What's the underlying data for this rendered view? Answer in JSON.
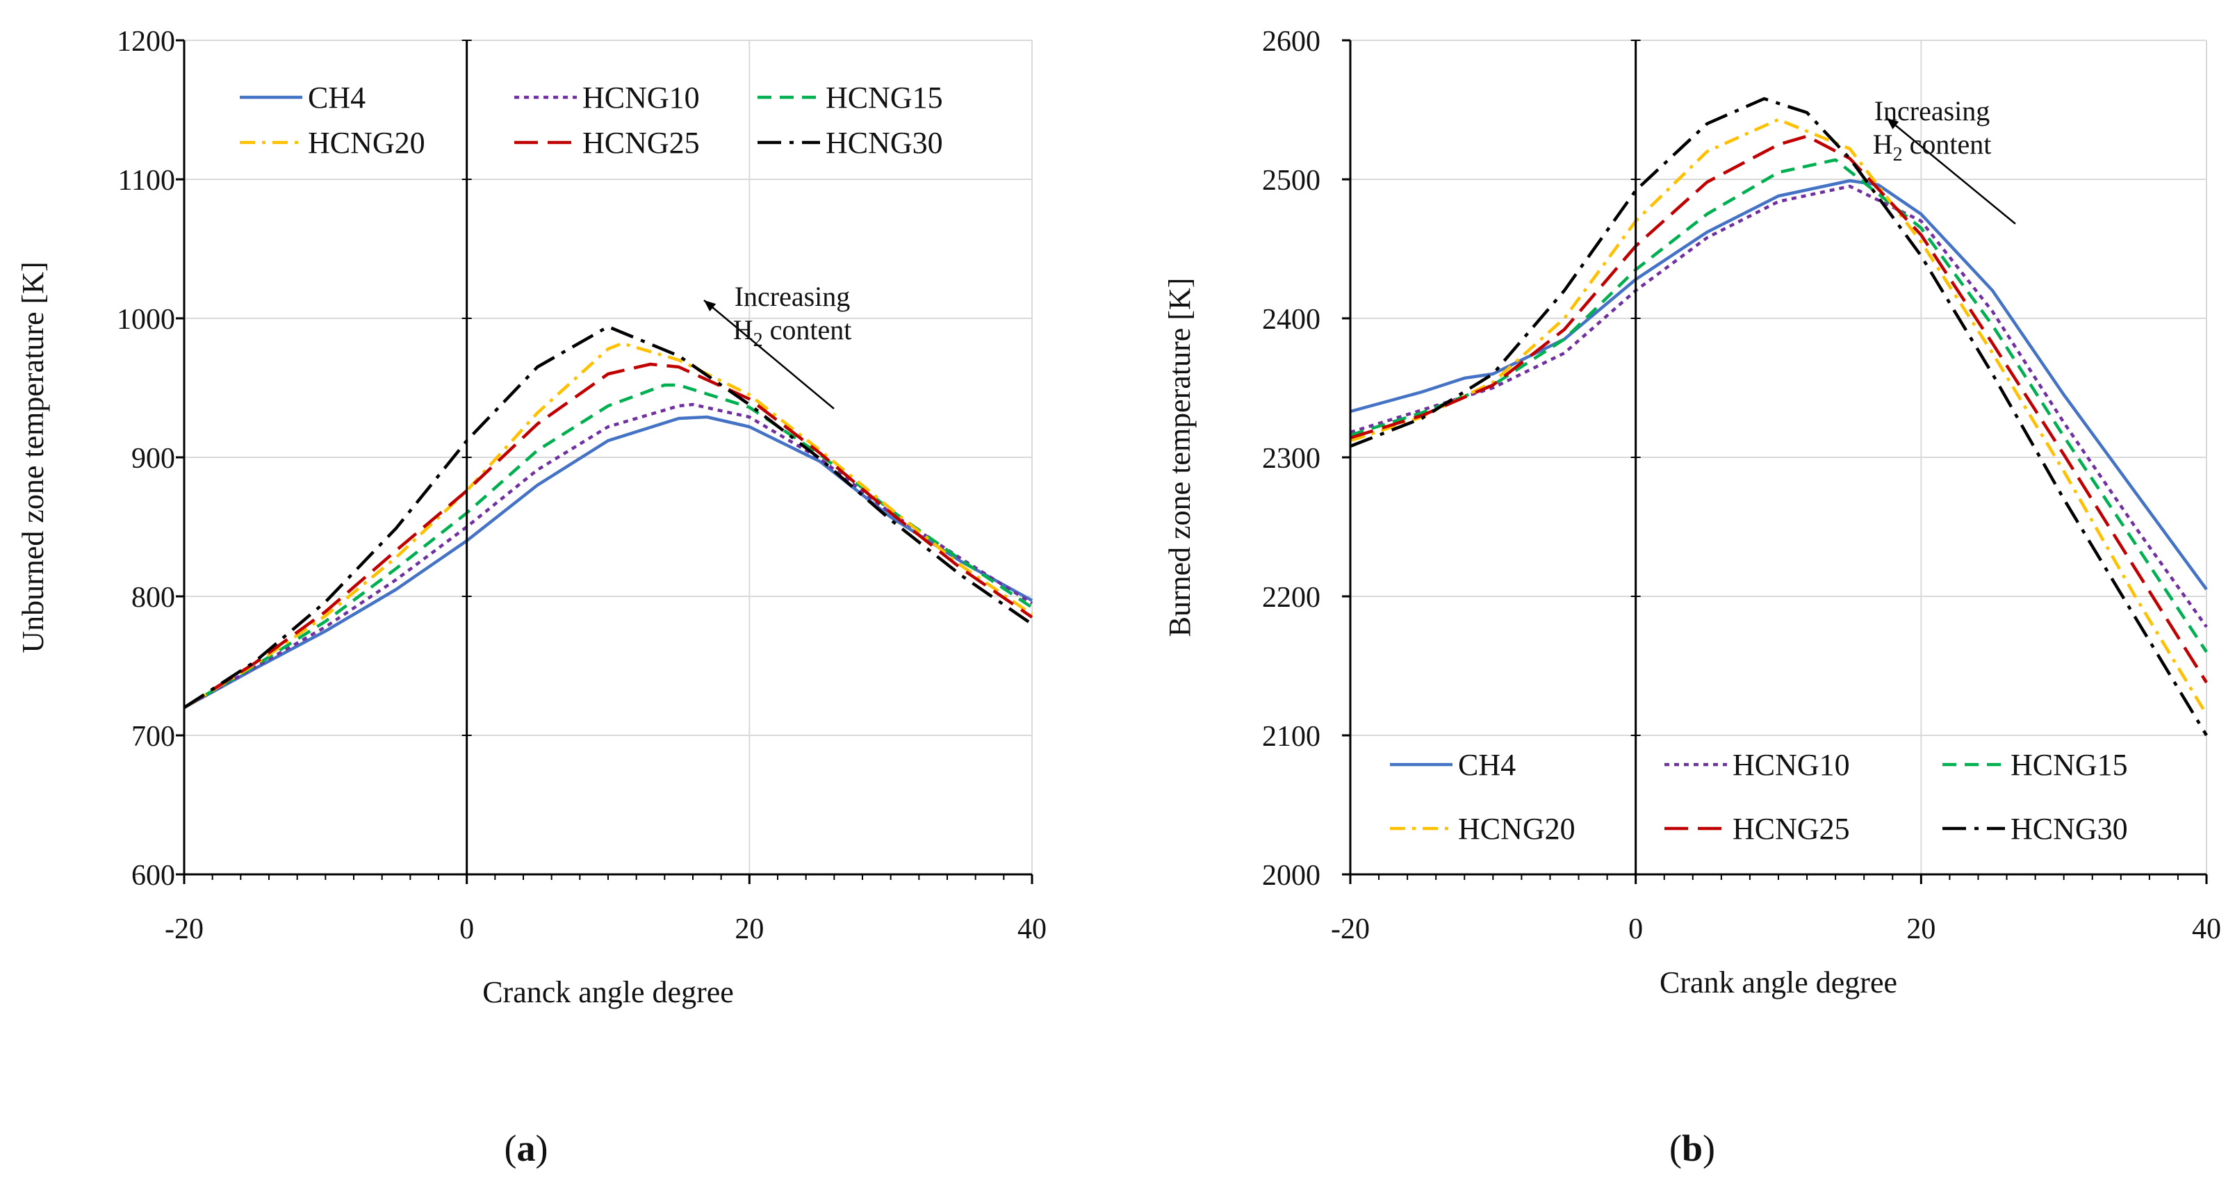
{
  "chart_data": [
    {
      "type": "line",
      "panel_label": "(a)",
      "panel_letter": "a",
      "xlabel": "Cranck angle degree",
      "ylabel": "Unburned zone temperature [K]",
      "xlim": [
        -20,
        40
      ],
      "ylim": [
        600,
        1200
      ],
      "xticks": [
        -20,
        0,
        20,
        40
      ],
      "yticks": [
        600,
        700,
        800,
        900,
        1000,
        1100,
        1200
      ],
      "grid": true,
      "legend_position": "top",
      "annotation": {
        "line1": "Increasing",
        "line2_prefix": "H",
        "line2_sub": "2",
        "line2_suffix": " content"
      },
      "series": [
        {
          "name": "CH4",
          "color": "#4472C4",
          "dash": "solid",
          "x": [
            -20,
            -15,
            -10,
            -5,
            0,
            5,
            10,
            15,
            17,
            20,
            25,
            30,
            35,
            40
          ],
          "y": [
            720,
            748,
            775,
            805,
            840,
            880,
            912,
            928,
            929,
            922,
            897,
            857,
            825,
            797
          ]
        },
        {
          "name": "HCNG10",
          "color": "#7030A0",
          "dash": "dot",
          "x": [
            -20,
            -15,
            -10,
            -5,
            0,
            5,
            10,
            15,
            16,
            20,
            25,
            30,
            35,
            40
          ],
          "y": [
            720,
            749,
            778,
            812,
            850,
            891,
            922,
            937,
            938,
            929,
            899,
            860,
            827,
            795
          ]
        },
        {
          "name": "HCNG15",
          "color": "#00B050",
          "dash": "dash",
          "x": [
            -20,
            -15,
            -10,
            -5,
            0,
            5,
            10,
            14,
            15,
            20,
            25,
            30,
            35,
            40
          ],
          "y": [
            720,
            750,
            782,
            820,
            860,
            905,
            937,
            952,
            952,
            936,
            902,
            862,
            826,
            792
          ]
        },
        {
          "name": "HCNG20",
          "color": "#FFC000",
          "dash": "dashdot",
          "x": [
            -20,
            -15,
            -10,
            -5,
            0,
            5,
            10,
            11,
            15,
            20,
            25,
            30,
            35,
            40
          ],
          "y": [
            720,
            751,
            786,
            828,
            876,
            932,
            978,
            982,
            970,
            945,
            905,
            863,
            822,
            787
          ]
        },
        {
          "name": "HCNG25",
          "color": "#C00000",
          "dash": "longdash",
          "x": [
            -20,
            -15,
            -10,
            -5,
            0,
            5,
            10,
            13,
            15,
            20,
            25,
            30,
            35,
            40
          ],
          "y": [
            720,
            752,
            789,
            833,
            876,
            924,
            960,
            967,
            965,
            942,
            903,
            860,
            820,
            785
          ]
        },
        {
          "name": "HCNG30",
          "color": "#000000",
          "dash": "longdashdot",
          "x": [
            -20,
            -15,
            -10,
            -5,
            0,
            5,
            10,
            15,
            20,
            25,
            30,
            35,
            40
          ],
          "y": [
            720,
            753,
            796,
            849,
            912,
            965,
            994,
            973,
            938,
            899,
            855,
            815,
            780
          ]
        }
      ]
    },
    {
      "type": "line",
      "panel_label": "(b)",
      "panel_letter": "b",
      "xlabel": "Crank angle degree",
      "ylabel": "Burned zone temperature [K]",
      "xlim": [
        -20,
        40
      ],
      "ylim": [
        2000,
        2600
      ],
      "xticks": [
        -20,
        0,
        20,
        40
      ],
      "yticks": [
        2000,
        2100,
        2200,
        2300,
        2400,
        2500,
        2600
      ],
      "grid": true,
      "legend_position": "bottom",
      "annotation": {
        "line1": "Increasing",
        "line2_prefix": "H",
        "line2_sub": "2",
        "line2_suffix": " content"
      },
      "series": [
        {
          "name": "CH4",
          "color": "#4472C4",
          "dash": "solid",
          "x": [
            -20,
            -15,
            -12,
            -10,
            -5,
            0,
            5,
            10,
            15,
            17,
            20,
            25,
            30,
            35,
            40
          ],
          "y": [
            2333,
            2347,
            2357,
            2360,
            2385,
            2428,
            2462,
            2488,
            2499,
            2496,
            2475,
            2420,
            2345,
            2275,
            2205
          ]
        },
        {
          "name": "HCNG10",
          "color": "#7030A0",
          "dash": "dot",
          "x": [
            -20,
            -15,
            -10,
            -5,
            0,
            5,
            10,
            15,
            20,
            25,
            30,
            35,
            40
          ],
          "y": [
            2318,
            2334,
            2350,
            2375,
            2420,
            2458,
            2484,
            2495,
            2470,
            2405,
            2325,
            2250,
            2178
          ]
        },
        {
          "name": "HCNG15",
          "color": "#00B050",
          "dash": "dash",
          "x": [
            -20,
            -15,
            -10,
            -5,
            0,
            5,
            10,
            14,
            20,
            25,
            30,
            35,
            40
          ],
          "y": [
            2316,
            2332,
            2352,
            2385,
            2435,
            2475,
            2505,
            2514,
            2465,
            2395,
            2315,
            2238,
            2160
          ]
        },
        {
          "name": "HCNG20",
          "color": "#FFC000",
          "dash": "dashdot",
          "x": [
            -20,
            -15,
            -10,
            -5,
            0,
            5,
            10,
            15,
            20,
            25,
            30,
            35,
            40
          ],
          "y": [
            2312,
            2329,
            2354,
            2400,
            2470,
            2520,
            2543,
            2522,
            2455,
            2375,
            2290,
            2200,
            2115
          ]
        },
        {
          "name": "HCNG25",
          "color": "#C00000",
          "dash": "longdash",
          "x": [
            -20,
            -15,
            -10,
            -5,
            0,
            5,
            10,
            12,
            15,
            20,
            25,
            30,
            35,
            40
          ],
          "y": [
            2314,
            2330,
            2352,
            2392,
            2452,
            2498,
            2525,
            2531,
            2515,
            2460,
            2382,
            2302,
            2220,
            2138
          ]
        },
        {
          "name": "HCNG30",
          "color": "#000000",
          "dash": "longdashdot",
          "x": [
            -20,
            -15,
            -10,
            -5,
            0,
            5,
            9,
            12,
            15,
            20,
            25,
            30,
            35,
            40
          ],
          "y": [
            2308,
            2328,
            2360,
            2420,
            2492,
            2540,
            2558,
            2548,
            2515,
            2445,
            2360,
            2270,
            2185,
            2100
          ]
        }
      ]
    }
  ]
}
